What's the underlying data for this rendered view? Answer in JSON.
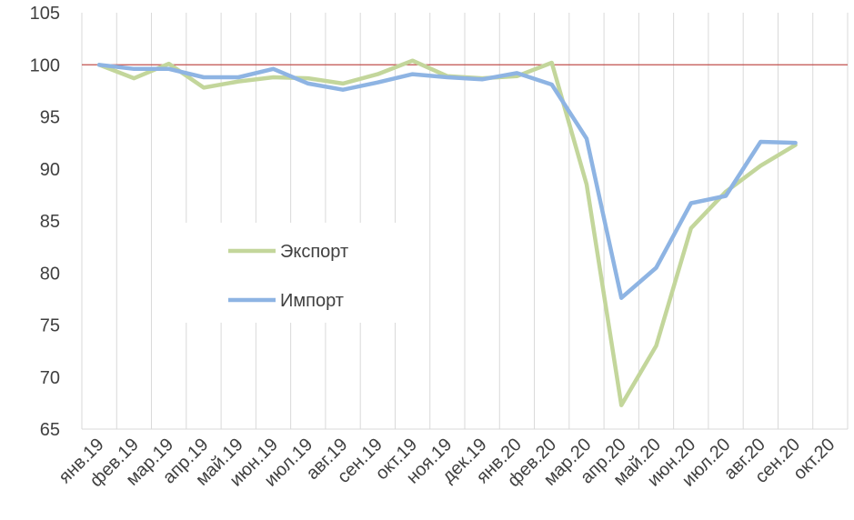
{
  "chart_data": {
    "type": "line",
    "title": "",
    "xlabel": "",
    "ylabel": "",
    "categories": [
      "янв.19",
      "фев.19",
      "мар.19",
      "апр.19",
      "май.19",
      "июн.19",
      "июл.19",
      "авг.19",
      "сен.19",
      "окт.19",
      "ноя.19",
      "дек.19",
      "янв.20",
      "фев.20",
      "мар.20",
      "апр.20",
      "май.20",
      "июн.20",
      "июл.20",
      "авг.20",
      "сен.20",
      "окт.20"
    ],
    "ylim": [
      65,
      105
    ],
    "yticks": [
      65,
      70,
      75,
      80,
      85,
      90,
      95,
      100,
      105
    ],
    "grid": "vertical",
    "reference_line": 100,
    "legend_position": "left-middle",
    "series": [
      {
        "name": "Экспорт",
        "color": "#c3d69b",
        "values": [
          100.0,
          98.7,
          100.1,
          97.8,
          98.4,
          98.8,
          98.7,
          98.2,
          99.1,
          100.4,
          98.9,
          98.7,
          98.9,
          100.2,
          88.5,
          67.3,
          73.0,
          84.3,
          87.8,
          90.3,
          92.3,
          null
        ]
      },
      {
        "name": "Импорт",
        "color": "#8eb4e3",
        "values": [
          100.0,
          99.6,
          99.6,
          98.8,
          98.8,
          99.6,
          98.2,
          97.6,
          98.3,
          99.1,
          98.8,
          98.6,
          99.2,
          98.1,
          92.9,
          77.6,
          80.5,
          86.7,
          87.4,
          92.6,
          92.5,
          null
        ]
      }
    ],
    "reference_line_color": "#c0504d",
    "axis_color": "#d9d9d9",
    "label_color": "#404040"
  }
}
